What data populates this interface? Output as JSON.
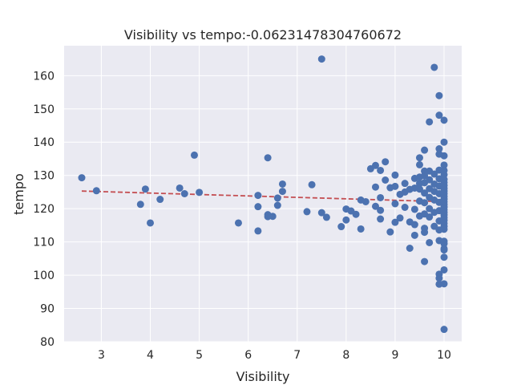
{
  "chart_data": {
    "type": "scatter",
    "title": "Visibility vs tempo:-0.06231478304760672",
    "xlabel": "Visibility",
    "ylabel": "tempo",
    "xlim": [
      2.24,
      10.36
    ],
    "ylim": [
      80,
      169
    ],
    "xticks": [
      3,
      4,
      5,
      6,
      7,
      8,
      9,
      10
    ],
    "yticks": [
      80,
      90,
      100,
      110,
      120,
      130,
      140,
      150,
      160
    ],
    "grid": true,
    "colors": {
      "background": "#eaeaf2",
      "grid": "#ffffff",
      "point": "#4c72b0",
      "trend": "#c44e52"
    },
    "trendline": {
      "x": [
        2.6,
        10.0
      ],
      "y": [
        125.3,
        122.1
      ],
      "style": "dashed"
    },
    "points": [
      [
        2.6,
        129.3
      ],
      [
        2.9,
        125.4
      ],
      [
        3.8,
        121.3
      ],
      [
        3.9,
        125.9
      ],
      [
        4.0,
        115.7
      ],
      [
        4.2,
        122.8
      ],
      [
        4.6,
        126.2
      ],
      [
        4.7,
        124.5
      ],
      [
        4.9,
        136.1
      ],
      [
        5.0,
        124.9
      ],
      [
        5.8,
        115.7
      ],
      [
        6.2,
        124.0
      ],
      [
        6.2,
        120.6
      ],
      [
        6.2,
        113.3
      ],
      [
        6.4,
        135.3
      ],
      [
        6.4,
        118.2
      ],
      [
        6.4,
        117.6
      ],
      [
        6.5,
        117.7
      ],
      [
        6.6,
        123.2
      ],
      [
        6.6,
        121.0
      ],
      [
        6.7,
        127.4
      ],
      [
        6.7,
        125.2
      ],
      [
        7.2,
        119.1
      ],
      [
        7.3,
        127.2
      ],
      [
        7.5,
        165.0
      ],
      [
        7.5,
        118.8
      ],
      [
        7.6,
        117.4
      ],
      [
        7.9,
        114.6
      ],
      [
        8.0,
        119.9
      ],
      [
        8.0,
        116.6
      ],
      [
        8.1,
        119.3
      ],
      [
        8.2,
        118.3
      ],
      [
        8.3,
        122.6
      ],
      [
        8.3,
        113.9
      ],
      [
        8.4,
        122.1
      ],
      [
        8.5,
        132.0
      ],
      [
        8.6,
        133.0
      ],
      [
        8.6,
        126.5
      ],
      [
        8.6,
        120.7
      ],
      [
        8.7,
        131.5
      ],
      [
        8.7,
        123.3
      ],
      [
        8.7,
        119.5
      ],
      [
        8.7,
        116.9
      ],
      [
        8.8,
        134.1
      ],
      [
        8.8,
        128.6
      ],
      [
        8.9,
        126.3
      ],
      [
        8.9,
        113.0
      ],
      [
        9.0,
        130.1
      ],
      [
        9.0,
        126.7
      ],
      [
        9.0,
        121.5
      ],
      [
        9.0,
        115.9
      ],
      [
        9.1,
        124.3
      ],
      [
        9.1,
        117.2
      ],
      [
        9.2,
        127.6
      ],
      [
        9.2,
        125.0
      ],
      [
        9.2,
        120.4
      ],
      [
        9.3,
        125.8
      ],
      [
        9.3,
        116.0
      ],
      [
        9.3,
        108.1
      ],
      [
        9.4,
        129.1
      ],
      [
        9.4,
        126.2
      ],
      [
        9.4,
        119.8
      ],
      [
        9.4,
        115.2
      ],
      [
        9.4,
        112.0
      ],
      [
        9.5,
        135.3
      ],
      [
        9.5,
        133.2
      ],
      [
        9.5,
        129.5
      ],
      [
        9.5,
        127.6
      ],
      [
        9.5,
        125.9
      ],
      [
        9.5,
        122.3
      ],
      [
        9.5,
        117.8
      ],
      [
        9.6,
        137.6
      ],
      [
        9.6,
        131.3
      ],
      [
        9.6,
        129.9
      ],
      [
        9.6,
        127.8
      ],
      [
        9.6,
        124.7
      ],
      [
        9.6,
        121.8
      ],
      [
        9.6,
        118.4
      ],
      [
        9.6,
        114.1
      ],
      [
        9.6,
        112.9
      ],
      [
        9.6,
        104.1
      ],
      [
        9.7,
        146.1
      ],
      [
        9.7,
        131.3
      ],
      [
        9.7,
        128.7
      ],
      [
        9.7,
        126.0
      ],
      [
        9.7,
        123.4
      ],
      [
        9.7,
        120.0
      ],
      [
        9.7,
        117.5
      ],
      [
        9.7,
        109.8
      ],
      [
        9.8,
        162.5
      ],
      [
        9.8,
        130.4
      ],
      [
        9.8,
        127.4
      ],
      [
        9.8,
        125.2
      ],
      [
        9.8,
        122.6
      ],
      [
        9.8,
        118.9
      ],
      [
        9.8,
        114.7
      ],
      [
        9.9,
        154.0
      ],
      [
        9.9,
        148.1
      ],
      [
        9.9,
        138.0
      ],
      [
        9.9,
        136.4
      ],
      [
        9.9,
        131.6
      ],
      [
        9.9,
        129.0
      ],
      [
        9.9,
        126.8
      ],
      [
        9.9,
        124.5
      ],
      [
        9.9,
        121.9
      ],
      [
        9.9,
        119.4
      ],
      [
        9.9,
        116.3
      ],
      [
        9.9,
        113.6
      ],
      [
        9.9,
        110.4
      ],
      [
        9.9,
        100.3
      ],
      [
        9.9,
        99.1
      ],
      [
        9.9,
        97.3
      ],
      [
        10.0,
        146.6
      ],
      [
        10.0,
        140.0
      ],
      [
        10.0,
        135.9
      ],
      [
        10.0,
        133.1
      ],
      [
        10.0,
        131.5
      ],
      [
        10.0,
        130.2
      ],
      [
        10.0,
        128.8
      ],
      [
        10.0,
        127.9
      ],
      [
        10.0,
        127.0
      ],
      [
        10.0,
        126.1
      ],
      [
        10.0,
        125.3
      ],
      [
        10.0,
        124.5
      ],
      [
        10.0,
        123.7
      ],
      [
        10.0,
        122.9
      ],
      [
        10.0,
        122.1
      ],
      [
        10.0,
        121.3
      ],
      [
        10.0,
        120.5
      ],
      [
        10.0,
        119.7
      ],
      [
        10.0,
        118.9
      ],
      [
        10.0,
        118.1
      ],
      [
        10.0,
        117.3
      ],
      [
        10.0,
        116.5
      ],
      [
        10.0,
        115.6
      ],
      [
        10.0,
        114.7
      ],
      [
        10.0,
        113.8
      ],
      [
        10.0,
        110.2
      ],
      [
        10.0,
        109.5
      ],
      [
        10.0,
        108.0
      ],
      [
        10.0,
        107.6
      ],
      [
        10.0,
        105.4
      ],
      [
        10.0,
        101.6
      ],
      [
        10.0,
        97.4
      ],
      [
        10.0,
        83.7
      ]
    ]
  }
}
